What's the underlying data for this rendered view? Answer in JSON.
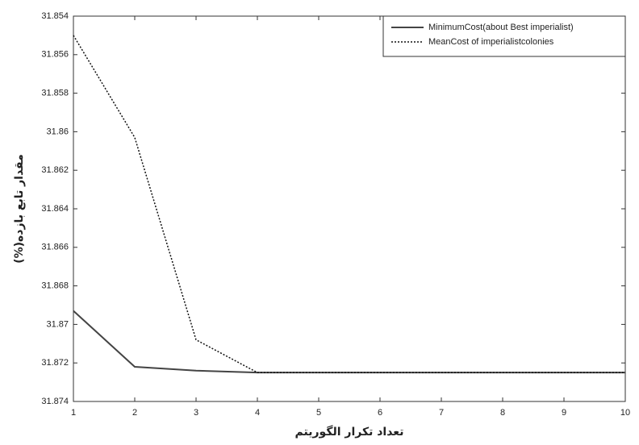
{
  "chart_data": {
    "type": "line",
    "x_label": "تعداد تکرار الگوریتم",
    "y_label": "مقدار تابع بازده(%)",
    "x": [
      1,
      2,
      3,
      4,
      5,
      6,
      7,
      8,
      9,
      10
    ],
    "series": [
      {
        "name": "MinimumCost(about Best imperialist)",
        "color": "#444444",
        "dash": "solid",
        "values": [
          31.8693,
          31.8722,
          31.8724,
          31.8725,
          31.8725,
          31.8725,
          31.8725,
          31.8725,
          31.8725,
          31.8725
        ]
      },
      {
        "name": "MeanCost of imperialistcolonies",
        "color": "#111111",
        "dash": "dotted",
        "values": [
          31.855,
          31.8603,
          31.8708,
          31.8725,
          31.8725,
          31.8725,
          31.8725,
          31.8725,
          31.8725,
          31.8725
        ]
      }
    ],
    "xlim": [
      1,
      10
    ],
    "xticks": [
      1,
      2,
      3,
      4,
      5,
      6,
      7,
      8,
      9,
      10
    ],
    "ylim": [
      31.854,
      31.874
    ],
    "y_reversed": true,
    "yticks": [
      31.854,
      31.856,
      31.858,
      31.86,
      31.862,
      31.864,
      31.866,
      31.868,
      31.87,
      31.872,
      31.874
    ],
    "legend": "northeast"
  }
}
